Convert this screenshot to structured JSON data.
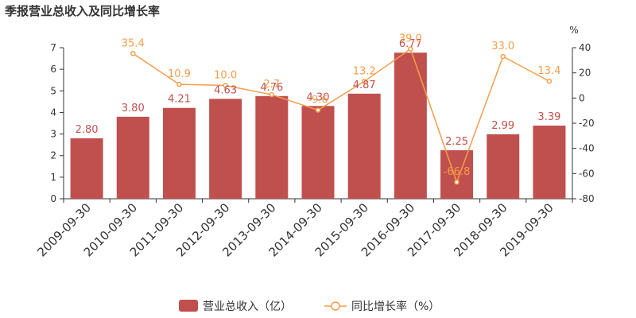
{
  "chart_data": {
    "type": "bar",
    "title": "季报营业总收入及同比增长率",
    "categories": [
      "2009-09-30",
      "2010-09-30",
      "2011-09-30",
      "2012-09-30",
      "2013-09-30",
      "2014-09-30",
      "2015-09-30",
      "2016-09-30",
      "2017-09-30",
      "2018-09-30",
      "2019-09-30"
    ],
    "series": [
      {
        "name": "营业总收入（亿）",
        "type": "bar",
        "axis": "left",
        "color": "#c0504d",
        "values": [
          2.8,
          3.8,
          4.21,
          4.63,
          4.76,
          4.3,
          4.87,
          6.77,
          2.25,
          2.99,
          3.39
        ],
        "labels": [
          "2.80",
          "3.80",
          "4.21",
          "4.63",
          "4.76",
          "4.30",
          "4.87",
          "6.77",
          "2.25",
          "2.99",
          "3.39"
        ]
      },
      {
        "name": "同比增长率（%）",
        "type": "line",
        "axis": "right",
        "color": "#f59d4b",
        "values": [
          null,
          35.4,
          10.9,
          10.0,
          2.7,
          -9.6,
          13.2,
          39.0,
          -66.8,
          33.0,
          13.4
        ],
        "labels": [
          "",
          "35.4",
          "10.9",
          "10.0",
          "2.7",
          "-9.6",
          "13.2",
          "39.0",
          "-66.8",
          "33.0",
          "13.4"
        ]
      }
    ],
    "y_left": {
      "min": 0,
      "max": 7,
      "ticks": [
        "0",
        "1",
        "2",
        "3",
        "4",
        "5",
        "6",
        "7"
      ]
    },
    "y_right": {
      "min": -80,
      "max": 40,
      "ticks": [
        "-80",
        "-60",
        "-40",
        "-20",
        "0",
        "20",
        "40"
      ],
      "unit": "%"
    },
    "grid": false,
    "legend": "bottom-center"
  }
}
